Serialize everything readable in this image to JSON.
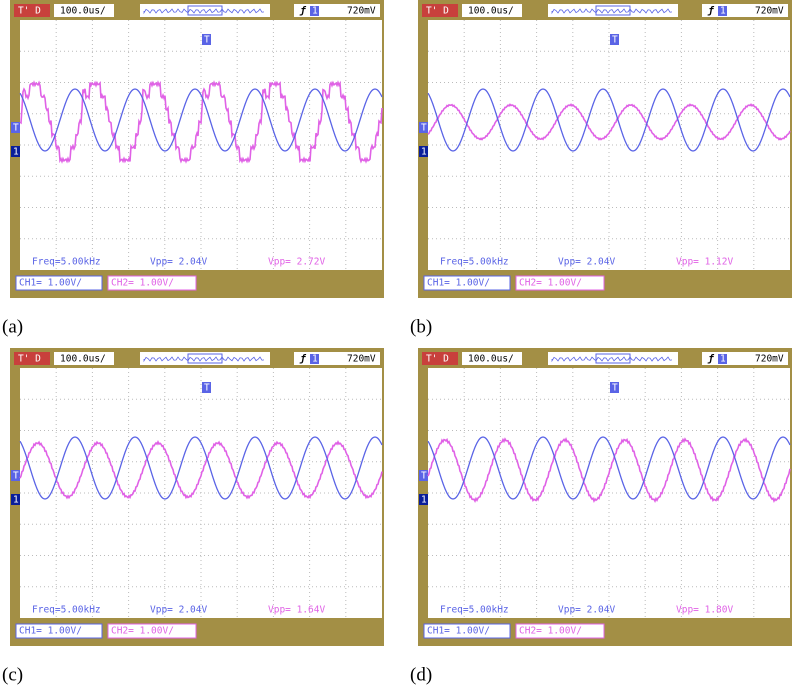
{
  "panels": [
    {
      "caption": "(a)",
      "trigger_mode": "T' D",
      "timebase": "100.0us/",
      "trigger_channel": "1",
      "trigger_level": "720mV",
      "trigger_marker": "T",
      "ch1_marker": "1",
      "freq": "Freq=5.00kHz",
      "ch1_vpp": "Vpp= 2.04V",
      "ch2_vpp": "Vpp= 2.72V",
      "ch1_scale": "CH1= 1.00V/",
      "ch2_scale": "CH2= 1.00V/"
    },
    {
      "caption": "(b)",
      "trigger_mode": "T' D",
      "timebase": "100.0us/",
      "trigger_channel": "1",
      "trigger_level": "720mV",
      "trigger_marker": "T",
      "ch1_marker": "1",
      "freq": "Freq=5.00kHz",
      "ch1_vpp": "Vpp= 2.04V",
      "ch2_vpp": "Vpp= 1.12V",
      "ch1_scale": "CH1= 1.00V/",
      "ch2_scale": "CH2= 1.00V/"
    },
    {
      "caption": "(c)",
      "trigger_mode": "T' D",
      "timebase": "100.0us/",
      "trigger_channel": "1",
      "trigger_level": "720mV",
      "trigger_marker": "T",
      "ch1_marker": "1",
      "freq": "Freq=5.00kHz",
      "ch1_vpp": "Vpp= 2.04V",
      "ch2_vpp": "Vpp= 1.64V",
      "ch1_scale": "CH1= 1.00V/",
      "ch2_scale": "CH2= 1.00V/"
    },
    {
      "caption": "(d)",
      "trigger_mode": "T' D",
      "timebase": "100.0us/",
      "trigger_channel": "1",
      "trigger_level": "720mV",
      "trigger_marker": "T",
      "ch1_marker": "1",
      "freq": "Freq=5.00kHz",
      "ch1_vpp": "Vpp= 2.04V",
      "ch2_vpp": "Vpp= 1.80V",
      "ch1_scale": "CH1= 1.00V/",
      "ch2_scale": "CH2= 1.00V/"
    }
  ]
}
